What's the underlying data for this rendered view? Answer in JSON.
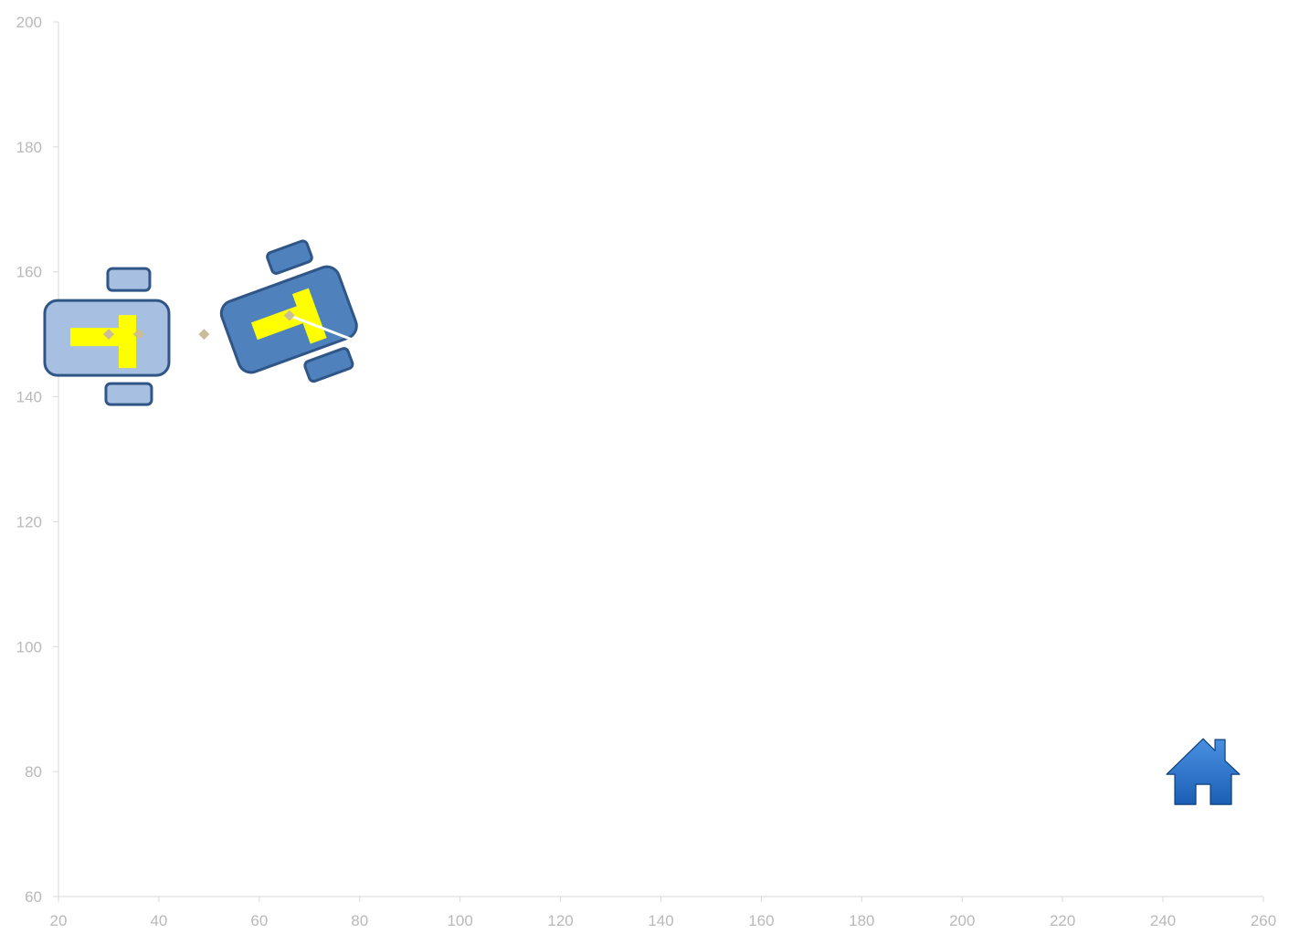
{
  "chart_data": {
    "type": "scatter",
    "title": "",
    "xlabel": "",
    "ylabel": "",
    "xlim": [
      20,
      260
    ],
    "ylim": [
      60,
      200
    ],
    "x_ticks": [
      20,
      40,
      60,
      80,
      100,
      120,
      140,
      160,
      180,
      200,
      220,
      240,
      260
    ],
    "y_ticks": [
      60,
      80,
      100,
      120,
      140,
      160,
      180,
      200
    ],
    "x_tick_labels": [
      "20",
      "40",
      "60",
      "80",
      "100",
      "120",
      "140",
      "160",
      "180",
      "200",
      "220",
      "240",
      "260"
    ],
    "y_tick_labels": [
      "60",
      "80",
      "100",
      "120",
      "140",
      "160",
      "180",
      "200"
    ],
    "grid": false,
    "legend": "none",
    "series": [
      {
        "marker": "diamond",
        "color": "#c9bd9a",
        "points": [
          {
            "x": 30,
            "y": 150
          },
          {
            "x": 36,
            "y": 150
          },
          {
            "x": 49,
            "y": 150
          },
          {
            "x": 66,
            "y": 153
          }
        ]
      }
    ],
    "robots": [
      {
        "name": "robot-start",
        "x": 30,
        "y": 150,
        "heading_deg": 0,
        "fill": "#a7bfe0",
        "stroke": "#2f5687",
        "emblem": "#ffff00"
      },
      {
        "name": "robot-current",
        "x": 66,
        "y": 153,
        "heading_deg": -20,
        "fill": "#4f81bd",
        "stroke": "#2f5687",
        "emblem": "#ffff00"
      }
    ],
    "heading_line": {
      "x1": 66,
      "y1": 153,
      "x2": 79,
      "y2": 149,
      "color": "#ffffff"
    },
    "home": {
      "x": 248,
      "y": 80,
      "icon": "house-icon",
      "color": "#1a5fb4"
    }
  }
}
